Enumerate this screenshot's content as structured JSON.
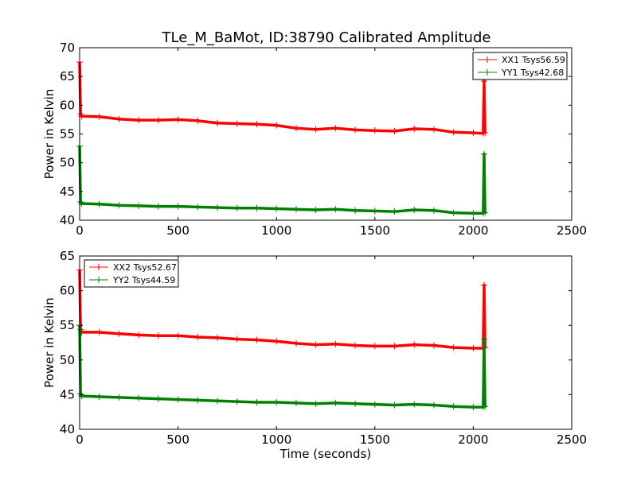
{
  "figure": {
    "title": "TLe_M_BaMot, ID:38790 Calibrated Amplitude"
  },
  "chart_data": [
    {
      "type": "line",
      "title": "TLe_M_BaMot, ID:38790 Calibrated Amplitude",
      "xlabel": "",
      "ylabel": "Power in Kelvin",
      "xlim": [
        0,
        2500
      ],
      "ylim": [
        40,
        70
      ],
      "xticks": [
        0,
        500,
        1000,
        1500,
        2000,
        2500
      ],
      "yticks": [
        40,
        45,
        50,
        55,
        60,
        65,
        70
      ],
      "grid": false,
      "legend_position": "top-right",
      "series": [
        {
          "name": "XX1 Tsys56.59",
          "color": "#ff0000",
          "x": [
            0,
            5,
            10,
            100,
            200,
            300,
            400,
            500,
            600,
            700,
            800,
            900,
            1000,
            1100,
            1200,
            1300,
            1400,
            1500,
            1600,
            1700,
            1800,
            1900,
            2000,
            2050,
            2055,
            2060
          ],
          "y": [
            67.5,
            58.5,
            58.1,
            58.0,
            57.6,
            57.4,
            57.4,
            57.5,
            57.3,
            56.9,
            56.8,
            56.7,
            56.5,
            56.0,
            55.8,
            56.0,
            55.7,
            55.6,
            55.5,
            55.9,
            55.8,
            55.3,
            55.2,
            55.1,
            64.2,
            55.2
          ]
        },
        {
          "name": "YY1 Tsys42.68",
          "color": "#008000",
          "x": [
            0,
            5,
            10,
            100,
            200,
            300,
            400,
            500,
            600,
            700,
            800,
            900,
            1000,
            1100,
            1200,
            1300,
            1400,
            1500,
            1600,
            1700,
            1800,
            1900,
            2000,
            2050,
            2055,
            2060
          ],
          "y": [
            52.9,
            43.2,
            42.9,
            42.8,
            42.6,
            42.5,
            42.4,
            42.4,
            42.3,
            42.2,
            42.1,
            42.1,
            42.0,
            41.9,
            41.8,
            41.9,
            41.7,
            41.6,
            41.5,
            41.8,
            41.7,
            41.3,
            41.2,
            41.2,
            51.5,
            41.3
          ]
        }
      ]
    },
    {
      "type": "line",
      "title": "",
      "xlabel": "Time (seconds)",
      "ylabel": "Power in Kelvin",
      "xlim": [
        0,
        2500
      ],
      "ylim": [
        40,
        65
      ],
      "xticks": [
        0,
        500,
        1000,
        1500,
        2000,
        2500
      ],
      "yticks": [
        40,
        45,
        50,
        55,
        60,
        65
      ],
      "grid": false,
      "legend_position": "top-left",
      "series": [
        {
          "name": "XX2 Tsys52.67",
          "color": "#ff0000",
          "x": [
            0,
            5,
            10,
            100,
            200,
            300,
            400,
            500,
            600,
            700,
            800,
            900,
            1000,
            1100,
            1200,
            1300,
            1400,
            1500,
            1600,
            1700,
            1800,
            1900,
            2000,
            2050,
            2055,
            2060
          ],
          "y": [
            63.0,
            54.4,
            54.0,
            54.0,
            53.8,
            53.6,
            53.5,
            53.5,
            53.3,
            53.2,
            53.0,
            52.9,
            52.7,
            52.4,
            52.2,
            52.3,
            52.1,
            52.0,
            52.0,
            52.2,
            52.1,
            51.8,
            51.7,
            51.7,
            60.8,
            51.8
          ]
        },
        {
          "name": "YY2 Tsys44.59",
          "color": "#008000",
          "x": [
            0,
            5,
            10,
            100,
            200,
            300,
            400,
            500,
            600,
            700,
            800,
            900,
            1000,
            1100,
            1200,
            1300,
            1400,
            1500,
            1600,
            1700,
            1800,
            1900,
            2000,
            2050,
            2055,
            2060
          ],
          "y": [
            55.0,
            45.1,
            44.8,
            44.7,
            44.6,
            44.5,
            44.4,
            44.3,
            44.2,
            44.1,
            44.0,
            43.9,
            43.9,
            43.8,
            43.7,
            43.8,
            43.7,
            43.6,
            43.5,
            43.6,
            43.5,
            43.3,
            43.2,
            43.2,
            53.0,
            43.3
          ]
        }
      ]
    }
  ]
}
